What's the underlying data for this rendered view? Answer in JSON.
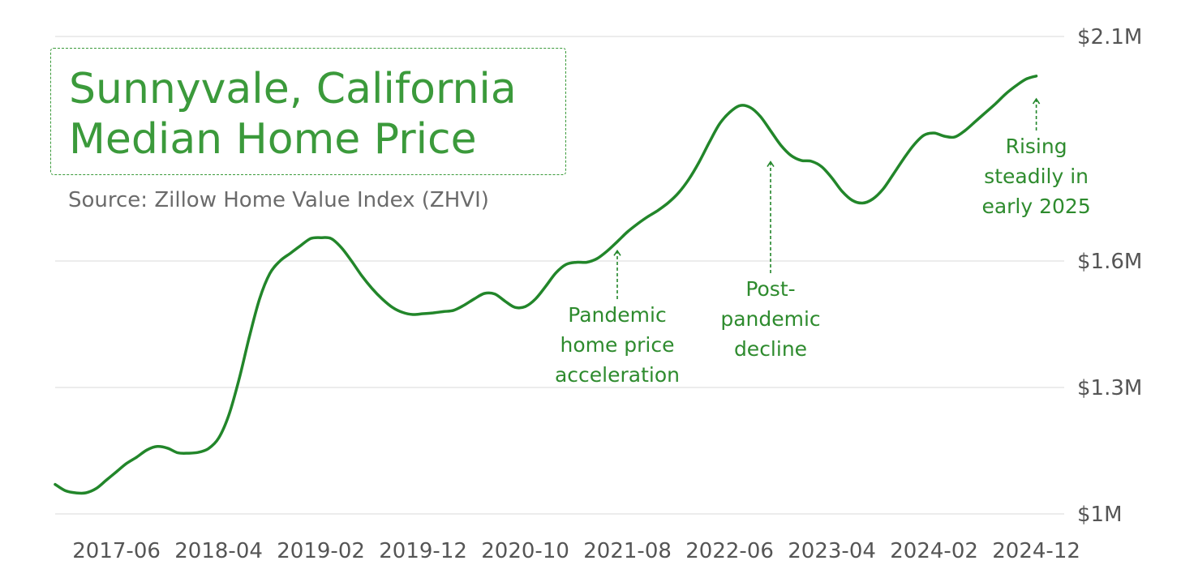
{
  "chart_data": {
    "type": "line",
    "title": "Sunnyvale, California",
    "subtitle": "Median Home Price",
    "source": "Source: Zillow Home Value Index (ZHVI)",
    "y_tick_labels": [
      "$2.1M",
      "$1.6M",
      "$1.3M",
      "$1M"
    ],
    "x_tick_labels": [
      "2017-06",
      "2018-04",
      "2019-02",
      "2019-12",
      "2020-10",
      "2021-08",
      "2022-06",
      "2023-04",
      "2024-02",
      "2024-12"
    ],
    "grid": true,
    "series": [
      {
        "color": "#22862a",
        "points": [
          [
            "2016-12",
            1.07
          ],
          [
            "2017-01",
            1.055
          ],
          [
            "2017-02",
            1.05
          ],
          [
            "2017-03",
            1.05
          ],
          [
            "2017-04",
            1.06
          ],
          [
            "2017-05",
            1.08
          ],
          [
            "2017-06",
            1.1
          ],
          [
            "2017-07",
            1.12
          ],
          [
            "2017-08",
            1.135
          ],
          [
            "2017-09",
            1.152
          ],
          [
            "2017-10",
            1.16
          ],
          [
            "2017-11",
            1.156
          ],
          [
            "2017-12",
            1.145
          ],
          [
            "2018-01",
            1.144
          ],
          [
            "2018-02",
            1.146
          ],
          [
            "2018-03",
            1.155
          ],
          [
            "2018-04",
            1.18
          ],
          [
            "2018-05",
            1.235
          ],
          [
            "2018-06",
            1.32
          ],
          [
            "2018-07",
            1.42
          ],
          [
            "2018-08",
            1.51
          ],
          [
            "2018-09",
            1.57
          ],
          [
            "2018-10",
            1.6
          ],
          [
            "2018-11",
            1.617
          ],
          [
            "2018-12",
            1.634
          ],
          [
            "2019-01",
            1.65
          ],
          [
            "2019-02",
            1.652
          ],
          [
            "2019-03",
            1.65
          ],
          [
            "2019-04",
            1.63
          ],
          [
            "2019-05",
            1.6
          ],
          [
            "2019-06",
            1.565
          ],
          [
            "2019-07",
            1.535
          ],
          [
            "2019-08",
            1.51
          ],
          [
            "2019-09",
            1.49
          ],
          [
            "2019-10",
            1.478
          ],
          [
            "2019-11",
            1.473
          ],
          [
            "2019-12",
            1.475
          ],
          [
            "2020-01",
            1.477
          ],
          [
            "2020-02",
            1.48
          ],
          [
            "2020-03",
            1.483
          ],
          [
            "2020-04",
            1.495
          ],
          [
            "2020-05",
            1.51
          ],
          [
            "2020-06",
            1.523
          ],
          [
            "2020-07",
            1.522
          ],
          [
            "2020-08",
            1.505
          ],
          [
            "2020-09",
            1.49
          ],
          [
            "2020-10",
            1.492
          ],
          [
            "2020-11",
            1.51
          ],
          [
            "2020-12",
            1.54
          ],
          [
            "2021-01",
            1.572
          ],
          [
            "2021-02",
            1.592
          ],
          [
            "2021-03",
            1.597
          ],
          [
            "2021-04",
            1.597
          ],
          [
            "2021-05",
            1.605
          ],
          [
            "2021-06",
            1.622
          ],
          [
            "2021-07",
            1.643
          ],
          [
            "2021-08",
            1.665
          ],
          [
            "2021-09",
            1.683
          ],
          [
            "2021-10",
            1.699
          ],
          [
            "2021-11",
            1.713
          ],
          [
            "2021-12",
            1.73
          ],
          [
            "2022-01",
            1.752
          ],
          [
            "2022-02",
            1.782
          ],
          [
            "2022-03",
            1.82
          ],
          [
            "2022-04",
            1.864
          ],
          [
            "2022-05",
            1.905
          ],
          [
            "2022-06",
            1.931
          ],
          [
            "2022-07",
            1.946
          ],
          [
            "2022-08",
            1.942
          ],
          [
            "2022-09",
            1.922
          ],
          [
            "2022-10",
            1.89
          ],
          [
            "2022-11",
            1.858
          ],
          [
            "2022-12",
            1.835
          ],
          [
            "2023-01",
            1.824
          ],
          [
            "2023-02",
            1.822
          ],
          [
            "2023-03",
            1.81
          ],
          [
            "2023-04",
            1.785
          ],
          [
            "2023-05",
            1.755
          ],
          [
            "2023-06",
            1.735
          ],
          [
            "2023-07",
            1.729
          ],
          [
            "2023-08",
            1.738
          ],
          [
            "2023-09",
            1.76
          ],
          [
            "2023-10",
            1.793
          ],
          [
            "2023-11",
            1.827
          ],
          [
            "2023-12",
            1.858
          ],
          [
            "2024-01",
            1.88
          ],
          [
            "2024-02",
            1.885
          ],
          [
            "2024-03",
            1.878
          ],
          [
            "2024-04",
            1.876
          ],
          [
            "2024-05",
            1.89
          ],
          [
            "2024-06",
            1.91
          ],
          [
            "2024-07",
            1.93
          ],
          [
            "2024-08",
            1.95
          ],
          [
            "2024-09",
            1.972
          ],
          [
            "2024-10",
            1.99
          ],
          [
            "2024-11",
            2.005
          ],
          [
            "2024-12",
            2.012
          ]
        ]
      }
    ],
    "annotations": [
      {
        "lines": [
          "Pandemic",
          "home price",
          "acceleration"
        ],
        "x": "2021-07",
        "y": 1.632
      },
      {
        "lines": [
          "Post-",
          "pandemic",
          "decline"
        ],
        "x": "2022-10",
        "y": 1.83
      },
      {
        "lines": [
          "Rising",
          "steadily in",
          "early 2025"
        ],
        "x": "2024-12",
        "y": 1.97
      }
    ]
  }
}
